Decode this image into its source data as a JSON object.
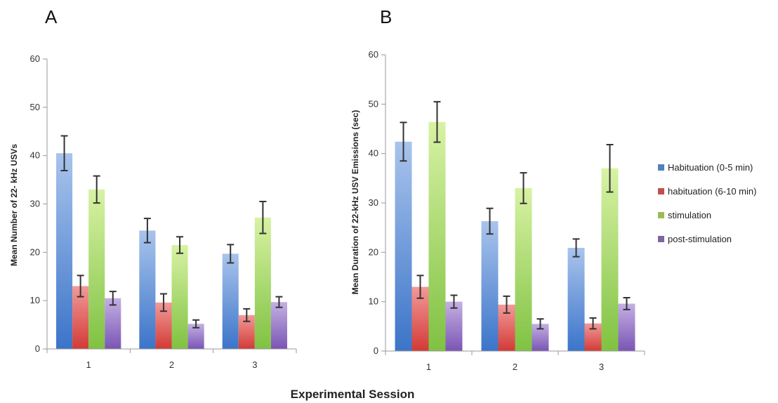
{
  "x_title": "Experimental Session",
  "legend": [
    {
      "label": "Habituation (0-5 min)",
      "color": "#4f81bd"
    },
    {
      "label": "habituation (6-10 min)",
      "color": "#c0504d"
    },
    {
      "label": "stimulation",
      "color": "#9bbb59"
    },
    {
      "label": "post-stimulation",
      "color": "#8064a2"
    }
  ],
  "chart_data": [
    {
      "panel": "A",
      "type": "bar",
      "ylabel": "Mean Number of 22- kHz USVs",
      "ylim": [
        0,
        60
      ],
      "yticks": [
        0,
        10,
        20,
        30,
        40,
        50,
        60
      ],
      "categories": [
        "1",
        "2",
        "3"
      ],
      "series": [
        {
          "name": "Habituation (0-5 min)",
          "values": [
            40.5,
            24.5,
            19.7
          ],
          "errors": [
            3.6,
            2.5,
            1.9
          ]
        },
        {
          "name": "habituation (6-10 min)",
          "values": [
            13.0,
            9.6,
            7.0
          ],
          "errors": [
            2.2,
            1.8,
            1.3
          ]
        },
        {
          "name": "stimulation",
          "values": [
            33.0,
            21.5,
            27.2
          ],
          "errors": [
            2.8,
            1.7,
            3.3
          ]
        },
        {
          "name": "post-stimulation",
          "values": [
            10.5,
            5.2,
            9.7
          ],
          "errors": [
            1.4,
            0.8,
            1.1
          ]
        }
      ]
    },
    {
      "panel": "B",
      "type": "bar",
      "ylabel": "Mean Duration of 22-kHz USV Emissions (sec)",
      "ylim": [
        0,
        60
      ],
      "yticks": [
        0,
        10,
        20,
        30,
        40,
        50,
        60
      ],
      "categories": [
        "1",
        "2",
        "3"
      ],
      "series": [
        {
          "name": "Habituation (0-5 min)",
          "values": [
            42.4,
            26.3,
            20.9
          ],
          "errors": [
            3.9,
            2.6,
            1.8
          ]
        },
        {
          "name": "habituation (6-10 min)",
          "values": [
            13.0,
            9.4,
            5.6
          ],
          "errors": [
            2.3,
            1.7,
            1.1
          ]
        },
        {
          "name": "stimulation",
          "values": [
            46.4,
            33.0,
            37.0
          ],
          "errors": [
            4.1,
            3.1,
            4.8
          ]
        },
        {
          "name": "post-stimulation",
          "values": [
            10.0,
            5.5,
            9.6
          ],
          "errors": [
            1.3,
            1.0,
            1.2
          ]
        }
      ]
    }
  ]
}
